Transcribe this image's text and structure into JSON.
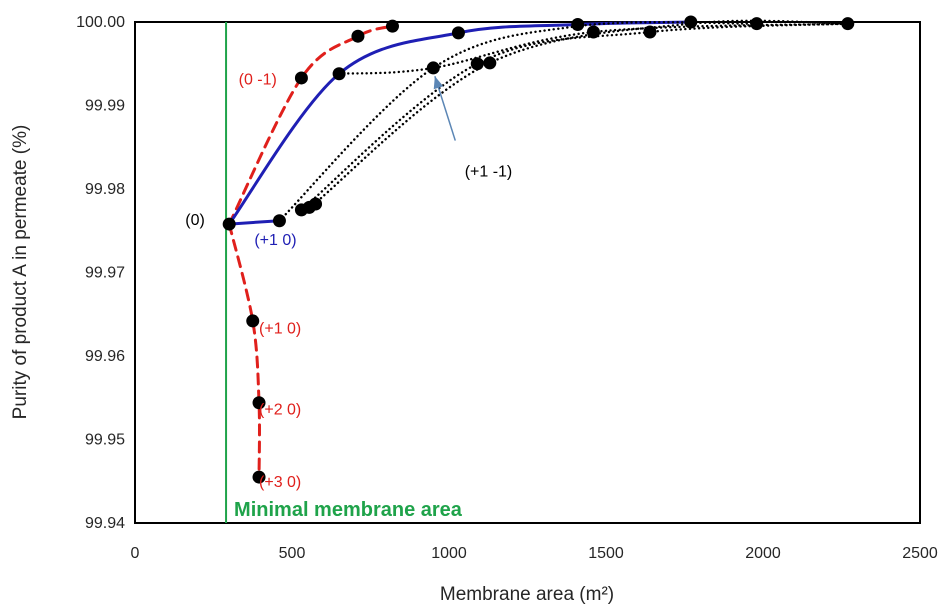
{
  "chart_data": {
    "type": "line",
    "title": "",
    "xlabel": "Membrane area (m²)",
    "ylabel": "Purity of product A in permeate (%)",
    "xlim": [
      0,
      2500
    ],
    "ylim": [
      99.94,
      100.0
    ],
    "x_ticks": [
      "0",
      "500",
      "1000",
      "1500",
      "2000",
      "2500"
    ],
    "y_ticks": [
      "99.94",
      "99.95",
      "99.96",
      "99.97",
      "99.98",
      "99.99",
      "100.00"
    ],
    "grid": false,
    "legend": "none",
    "colors": {
      "red": "#e0201c",
      "blue": "#1f1fb4",
      "black": "#000000",
      "green": "#1fa34a",
      "arrow": "#5b86b5"
    },
    "series": [
      {
        "style": "dashed",
        "color": "red",
        "x": [
          300,
          530,
          710,
          820
        ],
        "y": [
          99.9758,
          99.9933,
          99.9983,
          99.9995
        ]
      },
      {
        "style": "dashed",
        "color": "red",
        "x": [
          300,
          375,
          395,
          395
        ],
        "y": [
          99.9758,
          99.9642,
          99.9544,
          99.9455
        ]
      },
      {
        "style": "solid",
        "color": "blue",
        "x": [
          300,
          650,
          1030,
          1410,
          1770
        ],
        "y": [
          99.9758,
          99.9938,
          99.9987,
          99.9997,
          100.0
        ]
      },
      {
        "style": "solid",
        "color": "blue",
        "x": [
          300,
          460
        ],
        "y": [
          99.9758,
          99.9762
        ]
      },
      {
        "style": "dotted",
        "color": "black",
        "x": [
          650,
          950,
          1460,
          2270
        ],
        "y": [
          99.9938,
          99.9945,
          99.9988,
          99.9998
        ]
      },
      {
        "style": "dotted",
        "color": "black",
        "x": [
          460,
          950,
          1410,
          1980
        ],
        "y": [
          99.9762,
          99.9945,
          99.9995,
          99.9998
        ]
      },
      {
        "style": "dotted",
        "color": "black",
        "x": [
          530,
          1090,
          1640,
          2270
        ],
        "y": [
          99.9775,
          99.995,
          99.9988,
          99.9998
        ]
      },
      {
        "style": "dotted",
        "color": "black",
        "x": [
          570,
          1130,
          1770,
          2270
        ],
        "y": [
          99.9782,
          99.9951,
          99.9998,
          99.9998
        ]
      }
    ],
    "points": {
      "x": [
        300,
        530,
        710,
        820,
        650,
        1030,
        1410,
        1770,
        460,
        530,
        555,
        575,
        950,
        1090,
        1130,
        1460,
        1640,
        1980,
        2270,
        375,
        395,
        395
      ],
      "y": [
        99.9758,
        99.9933,
        99.9983,
        99.9995,
        99.9938,
        99.9987,
        99.9997,
        100.0,
        99.9762,
        99.9775,
        99.9778,
        99.9782,
        99.9945,
        99.995,
        99.9951,
        99.9988,
        99.9988,
        99.9998,
        99.9998,
        99.9642,
        99.9544,
        99.9455
      ]
    },
    "min_area_line": {
      "x": 290,
      "label": "Minimal membrane area"
    },
    "annotations": [
      {
        "text": "(0 -1)",
        "x": 330,
        "y": 99.9925,
        "color": "red"
      },
      {
        "text": "(+1 -1)",
        "x": 1050,
        "y": 99.9815,
        "color": "black"
      },
      {
        "text": "(0)",
        "x": 160,
        "y": 99.9757,
        "color": "black"
      },
      {
        "text": "(+1 0)",
        "x": 380,
        "y": 99.9733,
        "color": "blue"
      },
      {
        "text": "(+1 0)",
        "x": 395,
        "y": 99.9627,
        "color": "red"
      },
      {
        "text": "(+2 0)",
        "x": 395,
        "y": 99.953,
        "color": "red"
      },
      {
        "text": "(+3 0)",
        "x": 395,
        "y": 99.9443,
        "color": "red"
      }
    ],
    "arrow": {
      "from": [
        1020,
        99.9858
      ],
      "to": [
        955,
        99.9935
      ]
    }
  }
}
